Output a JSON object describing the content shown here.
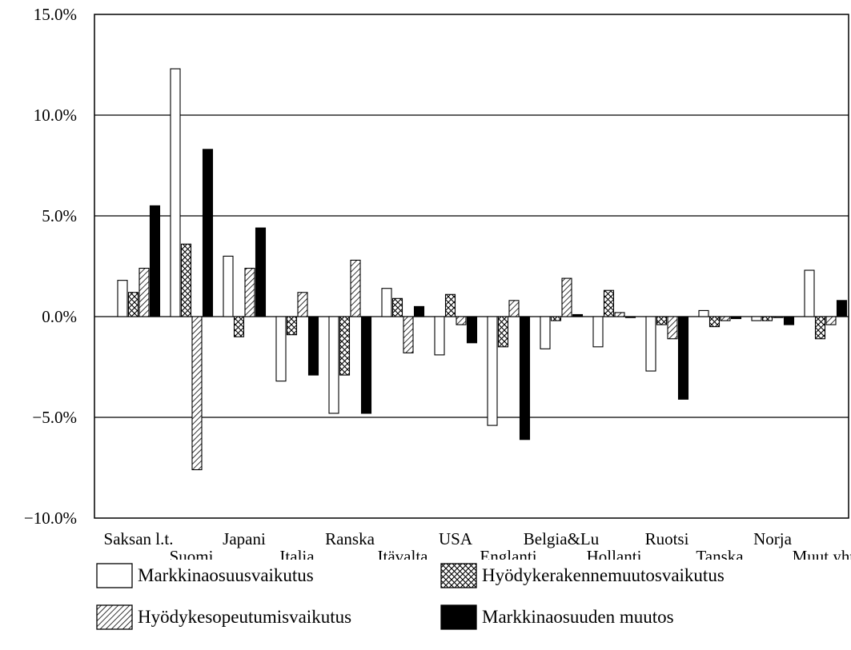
{
  "chart_data": {
    "type": "bar",
    "categories": [
      "Saksan l.t.",
      "Suomi",
      "Japani",
      "Italia",
      "Ranska",
      "Itävalta",
      "USA",
      "Englanti",
      "Belgia&Lu",
      "Hollanti",
      "Ruotsi",
      "Tanska",
      "Norja",
      "Muut yht."
    ],
    "series": [
      {
        "name": "Markkinaosuusvaikutus",
        "pattern": "empty",
        "values": [
          1.8,
          12.3,
          3.0,
          -3.2,
          -4.8,
          1.4,
          -1.9,
          -5.4,
          -1.6,
          -1.5,
          -2.7,
          0.3,
          -0.2,
          2.3
        ]
      },
      {
        "name": "Hyödykerakennemuutosvaikutus",
        "pattern": "crosshatch",
        "values": [
          1.2,
          3.6,
          -1.0,
          -0.9,
          -2.9,
          0.9,
          1.1,
          -1.5,
          -0.2,
          1.3,
          -0.4,
          -0.5,
          -0.2,
          -1.1
        ]
      },
      {
        "name": "Hyödykesopeutumisvaikutus",
        "pattern": "diagonal",
        "values": [
          2.4,
          -7.6,
          2.4,
          1.2,
          2.8,
          -1.8,
          -0.4,
          0.8,
          1.9,
          0.2,
          -1.1,
          -0.2,
          0.0,
          -0.4
        ]
      },
      {
        "name": "Markkinaosuuden muutos",
        "pattern": "solid",
        "values": [
          5.5,
          8.3,
          4.4,
          -2.9,
          -4.8,
          0.5,
          -1.3,
          -6.1,
          0.1,
          0.0,
          -4.1,
          -0.1,
          -0.4,
          0.8
        ]
      }
    ],
    "yticks": [
      "15.0%",
      "10.0%",
      "5.0%",
      "0.0%",
      "-5.0%",
      "-10.0%"
    ],
    "ytick_values": [
      15,
      10,
      5,
      0,
      -5,
      -10
    ],
    "ylim": [
      -10,
      15
    ],
    "gridlines": [
      10,
      5,
      0,
      -5
    ],
    "xlabel": "",
    "ylabel": "",
    "title": "",
    "legend_position": "bottom"
  },
  "colors": {
    "stroke": "#000000",
    "fill_solid": "#000000",
    "fill_empty": "#ffffff"
  }
}
